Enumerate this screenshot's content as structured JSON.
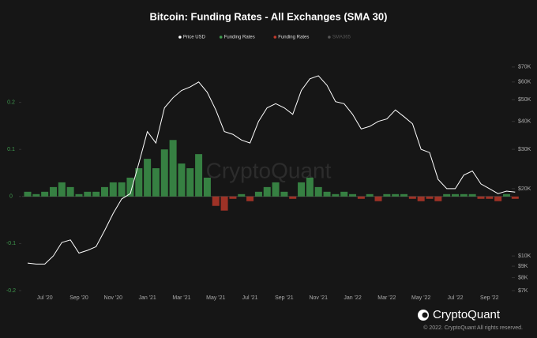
{
  "chart_data": {
    "type": "bar-line",
    "title": "Bitcoin: Funding Rates - All Exchanges (SMA 30)",
    "watermark": "CryptoQuant",
    "brand": "CryptoQuant",
    "copyright": "© 2022. CryptoQuant All rights reserved.",
    "categories": [
      null,
      null,
      "Jul '20",
      null,
      null,
      null,
      "Sep '20",
      null,
      null,
      null,
      "Nov '20",
      null,
      null,
      null,
      "Jan '21",
      null,
      null,
      null,
      "Mar '21",
      null,
      null,
      null,
      "May '21",
      null,
      null,
      null,
      "Jul '21",
      null,
      null,
      null,
      "Sep '21",
      null,
      null,
      null,
      "Nov '21",
      null,
      null,
      null,
      "Jan '22",
      null,
      null,
      null,
      "Mar '22",
      null,
      null,
      null,
      "May '22",
      null,
      null,
      null,
      "Jul '22",
      null,
      null,
      null,
      "Sep '22",
      null,
      null,
      null
    ],
    "series": [
      {
        "name": "Price USD",
        "color": "#ffffff",
        "axis": "y2",
        "kind": "line",
        "values": [
          9300,
          9200,
          9200,
          10000,
          11500,
          11800,
          10300,
          10600,
          11000,
          13000,
          15500,
          18000,
          19000,
          26000,
          36000,
          32000,
          46000,
          51000,
          55000,
          57000,
          60000,
          54000,
          45000,
          36000,
          35000,
          33000,
          32000,
          40000,
          46000,
          48000,
          46000,
          43000,
          55000,
          62000,
          64000,
          58000,
          49000,
          48000,
          43000,
          37000,
          38000,
          40000,
          41000,
          45000,
          42000,
          39000,
          30000,
          29000,
          22000,
          20000,
          20000,
          23000,
          24000,
          21000,
          20000,
          19000,
          19500,
          19300
        ]
      },
      {
        "name": "Funding Rates",
        "color": "#3f9b4e",
        "kind": "bar",
        "values": [
          0.01,
          0.005,
          0.01,
          0.02,
          0.03,
          0.02,
          0.005,
          0.01,
          0.01,
          0.02,
          0.03,
          0.03,
          0.04,
          0.06,
          0.08,
          0.06,
          0.1,
          0.12,
          0.07,
          0.06,
          0.09,
          0.04,
          null,
          null,
          null,
          0.005,
          null,
          0.01,
          0.02,
          0.03,
          0.01,
          null,
          0.03,
          0.04,
          0.02,
          0.01,
          0.005,
          0.01,
          0.005,
          null,
          0.005,
          null,
          0.005,
          0.005,
          0.005,
          null,
          null,
          null,
          null,
          0.005,
          0.005,
          0.005,
          0.005,
          null,
          null,
          null,
          0.005,
          null
        ]
      },
      {
        "name": "Funding Rates",
        "color": "#c0392b",
        "kind": "bar",
        "values": [
          null,
          null,
          null,
          null,
          null,
          null,
          null,
          null,
          null,
          null,
          null,
          null,
          null,
          null,
          null,
          null,
          null,
          null,
          null,
          null,
          null,
          null,
          -0.02,
          -0.03,
          -0.005,
          null,
          -0.01,
          null,
          null,
          null,
          null,
          -0.005,
          null,
          null,
          null,
          null,
          null,
          null,
          null,
          -0.005,
          null,
          -0.01,
          null,
          null,
          null,
          -0.005,
          -0.01,
          -0.005,
          -0.01,
          null,
          null,
          null,
          null,
          -0.005,
          -0.005,
          -0.01,
          null,
          -0.005
        ]
      },
      {
        "name": "SMA365",
        "color": "#555555",
        "kind": "line",
        "hidden": true,
        "values": [
          null,
          null,
          null,
          null,
          null,
          null,
          null,
          null,
          null,
          null,
          null,
          null,
          null,
          null,
          null,
          null,
          null,
          null,
          null,
          null,
          null,
          null,
          null,
          null,
          null,
          null,
          null,
          null,
          null,
          null,
          null,
          null,
          null,
          null,
          null,
          null,
          null,
          null,
          null,
          null,
          null,
          null,
          null,
          null,
          null,
          null,
          null,
          null,
          null,
          null,
          null,
          null,
          null,
          null,
          null,
          null,
          null,
          null
        ]
      }
    ],
    "ylim": [
      -0.2,
      0.3
    ],
    "yticks": [
      -0.2,
      -0.1,
      0,
      0.1,
      0.2
    ],
    "y2lim": [
      7000,
      79000
    ],
    "y2log": true,
    "y2ticks": [
      {
        "value": 7000,
        "label": "$7K"
      },
      {
        "value": 8000,
        "label": "$8K"
      },
      {
        "value": 9000,
        "label": "$9K"
      },
      {
        "value": 10000,
        "label": "$10K"
      },
      {
        "value": 20000,
        "label": "$20K"
      },
      {
        "value": 30000,
        "label": "$30K"
      },
      {
        "value": 40000,
        "label": "$40K"
      },
      {
        "value": 50000,
        "label": "$50K"
      },
      {
        "value": 60000,
        "label": "$60K"
      },
      {
        "value": 70000,
        "label": "$70K"
      }
    ]
  }
}
